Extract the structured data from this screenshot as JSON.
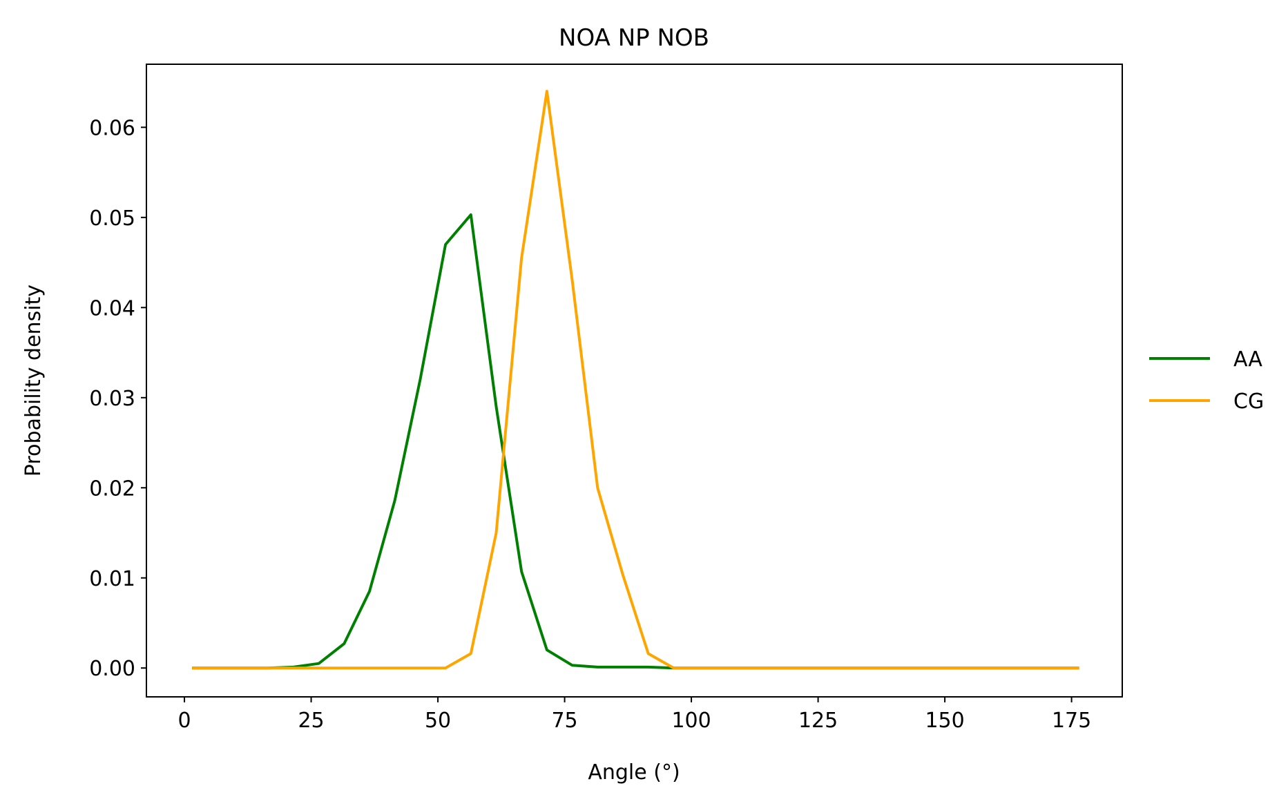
{
  "chart_data": {
    "type": "line",
    "title": "NOA NP NOB",
    "xlabel": "Angle (°)",
    "ylabel": "Probability density",
    "xlim": [
      -7.5,
      185
    ],
    "ylim": [
      -0.0032,
      0.067
    ],
    "xticks": [
      0,
      25,
      50,
      75,
      100,
      125,
      150,
      175
    ],
    "xtick_labels": [
      "0",
      "25",
      "50",
      "75",
      "100",
      "125",
      "150",
      "175"
    ],
    "yticks": [
      0.0,
      0.01,
      0.02,
      0.03,
      0.04,
      0.05,
      0.06
    ],
    "ytick_labels": [
      "0.00",
      "0.01",
      "0.02",
      "0.03",
      "0.04",
      "0.05",
      "0.06"
    ],
    "grid": false,
    "legend_position": "center-right-outside",
    "x": [
      1.5,
      6.5,
      11.5,
      16.5,
      21.5,
      26.5,
      31.5,
      36.5,
      41.5,
      46.5,
      51.5,
      56.5,
      61.5,
      66.5,
      71.5,
      76.5,
      81.5,
      86.5,
      91.5,
      96.5,
      101.5,
      106.5,
      111.5,
      116.5,
      121.5,
      126.5,
      131.5,
      136.5,
      141.5,
      146.5,
      151.5,
      156.5,
      161.5,
      166.5,
      171.5,
      176.5
    ],
    "series": [
      {
        "name": "AA",
        "color": "#008000",
        "values": [
          0,
          0,
          0,
          0,
          0.0001,
          0.0005,
          0.0027,
          0.0085,
          0.0186,
          0.032,
          0.047,
          0.0503,
          0.029,
          0.0107,
          0.002,
          0.0003,
          0.0001,
          0.0001,
          0.0001,
          0,
          0,
          0,
          0,
          0,
          0,
          0,
          0,
          0,
          0,
          0,
          0,
          0,
          0,
          0,
          0,
          0
        ]
      },
      {
        "name": "CG",
        "color": "#ffa500",
        "values": [
          0,
          0,
          0,
          0,
          0,
          0,
          0,
          0,
          0,
          0,
          0,
          0.0016,
          0.015,
          0.0455,
          0.064,
          0.043,
          0.02,
          0.0103,
          0.0016,
          0,
          0,
          0,
          0,
          0,
          0,
          0,
          0,
          0,
          0,
          0,
          0,
          0,
          0,
          0,
          0,
          0
        ]
      }
    ]
  }
}
